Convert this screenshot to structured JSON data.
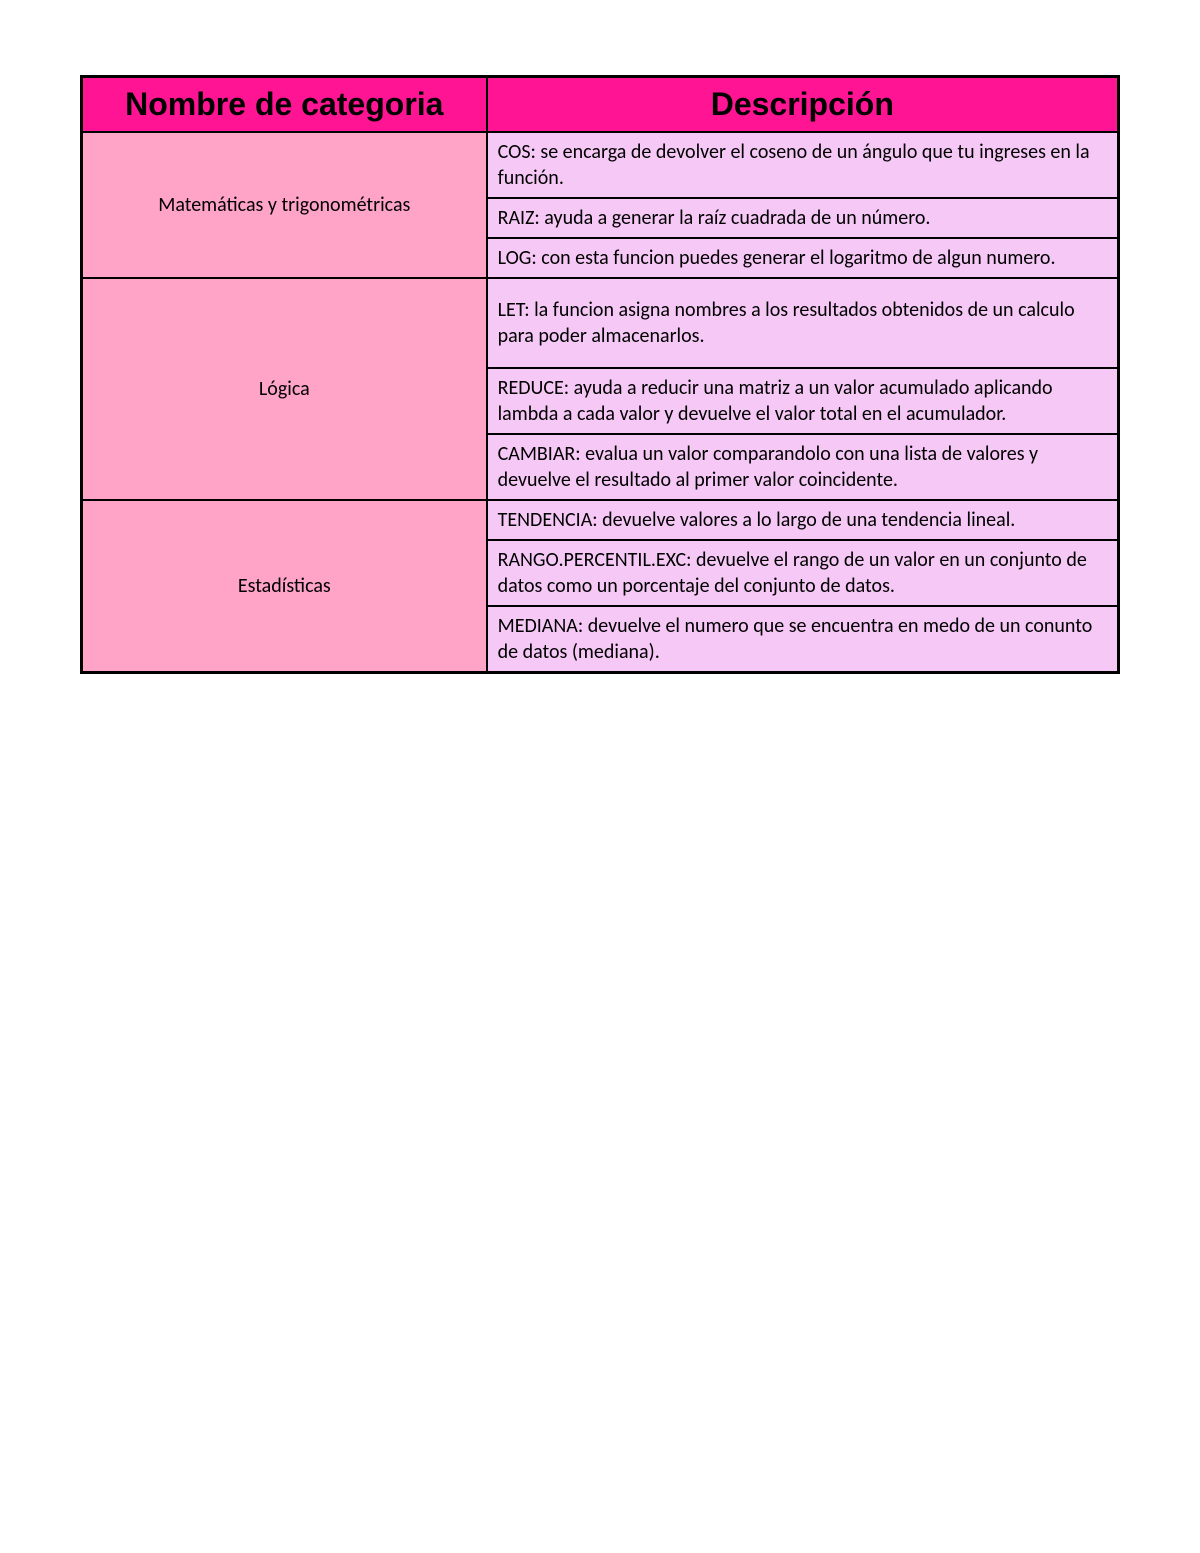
{
  "colors": {
    "header_bg": "#ff1493",
    "category_bg": "#ffa3c7",
    "desc_bg": "#f6c8f6",
    "border": "#000000",
    "text": "#000000"
  },
  "header": {
    "col1": "Nombre de categoria",
    "col2": "Descripción"
  },
  "categories": [
    {
      "name": "Matemáticas y trigonométricas",
      "rows": [
        "COS: se encarga de devolver el coseno de un ángulo que tu ingreses en la función.",
        "RAIZ: ayuda a generar la raíz cuadrada de un número.",
        "LOG: con esta funcion puedes generar el logaritmo de algun numero."
      ]
    },
    {
      "name": "Lógica",
      "rows": [
        "LET: la funcion asigna nombres a los resultados obtenidos de un calculo para poder almacenarlos.",
        "REDUCE: ayuda a reducir una matriz a un valor acumulado aplicando lambda a cada valor y devuelve el valor total en el acumulador.",
        "CAMBIAR: evalua un valor comparandolo con una lista de valores y devuelve el resultado al primer valor coincidente."
      ]
    },
    {
      "name": "Estadísticas",
      "rows": [
        "TENDENCIA: devuelve valores a lo largo de una tendencia lineal.",
        "RANGO.PERCENTIL.EXC: devuelve el rango de un valor en un conjunto de datos como un porcentaje del conjunto de datos.",
        "MEDIANA: devuelve el numero que se encuentra en medo de un conunto de datos (mediana)."
      ]
    }
  ],
  "row_paddings": [
    "6px 10px",
    "6px 10px",
    "6px 10px",
    "18px 10px",
    "6px 10px",
    "6px 10px",
    "6px 10px",
    "6px 10px",
    "6px 10px"
  ]
}
